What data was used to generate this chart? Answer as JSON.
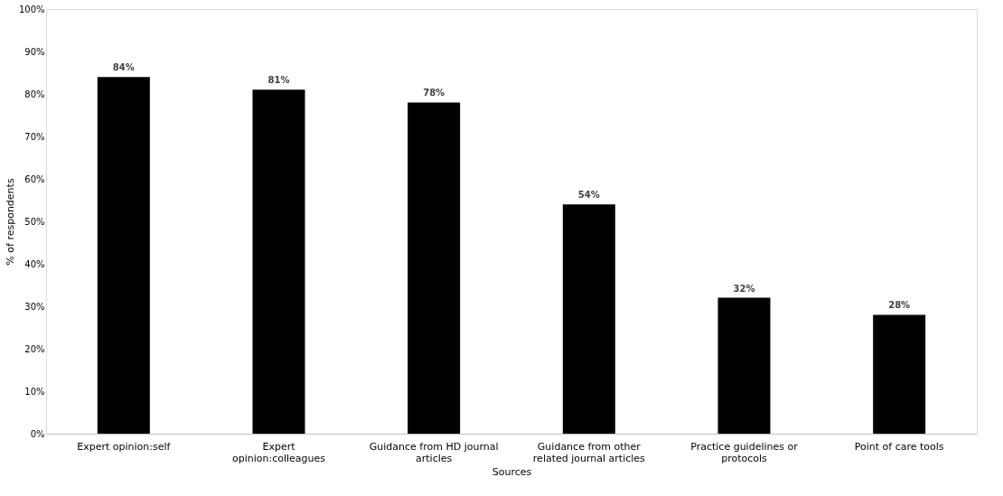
{
  "chart_data": {
    "type": "bar",
    "xlabel": "Sources",
    "ylabel": "% of respondents",
    "categories": [
      "Expert opinion:self",
      "Expert opinion:colleagues",
      "Guidance from HD journal articles",
      "Guidance from other related journal articles",
      "Practice guidelines or protocols",
      "Point of care tools"
    ],
    "values": [
      84,
      81,
      78,
      54,
      32,
      28
    ],
    "value_labels": [
      "84%",
      "81%",
      "78%",
      "54%",
      "32%",
      "28%"
    ],
    "color": "#000000",
    "ylim": [
      0,
      100
    ],
    "yticks": [
      {
        "value": 0,
        "label": "0%"
      },
      {
        "value": 10,
        "label": "10%"
      },
      {
        "value": 20,
        "label": "20%"
      },
      {
        "value": 30,
        "label": "30%"
      },
      {
        "value": 40,
        "label": "40%"
      },
      {
        "value": 50,
        "label": "50%"
      },
      {
        "value": 60,
        "label": "60%"
      },
      {
        "value": 70,
        "label": "70%"
      },
      {
        "value": 80,
        "label": "80%"
      },
      {
        "value": 90,
        "label": "90%"
      },
      {
        "value": 100,
        "label": "100%"
      }
    ],
    "grid": false
  }
}
